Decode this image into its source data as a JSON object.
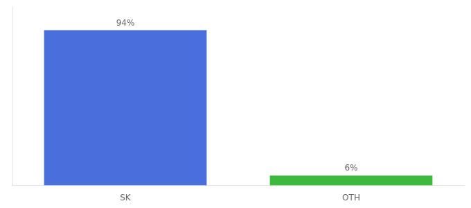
{
  "chart_data": {
    "type": "bar",
    "categories": [
      "SK",
      "OTH"
    ],
    "values": [
      94,
      6
    ],
    "value_labels": [
      "94%",
      "6%"
    ],
    "data_labels": true,
    "colors": [
      "#4a6edb",
      "#3dba3d"
    ],
    "ylim": [
      0,
      108
    ],
    "tick_labels": "x",
    "grid": false
  }
}
